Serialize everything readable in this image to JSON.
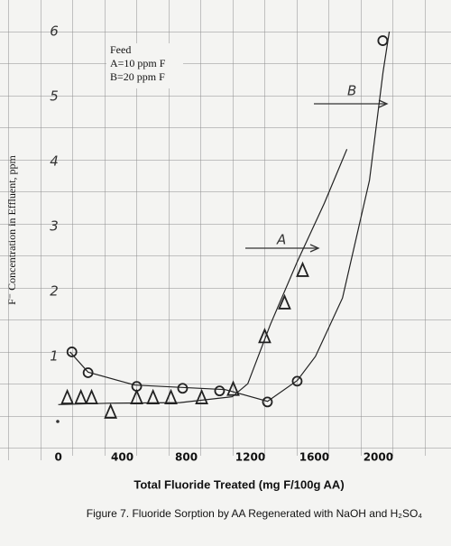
{
  "chart_data": {
    "type": "line",
    "y_label": "F⁻ Concentration in Effluent, ppm",
    "x_label": "Total Fluoride Treated (mg F/100g AA)",
    "caption": "Figure 7. Fluoride Sorption by AA Regenerated with NaOH and H₂SO₄",
    "legend_title": "Feed",
    "legend_entries": [
      "A=10 ppm F",
      "B=20 ppm F"
    ],
    "xlim": [
      -60,
      2150
    ],
    "ylim": [
      0,
      6.3
    ],
    "xticks": [
      0,
      400,
      800,
      1200,
      1600,
      2000
    ],
    "yticks": [
      1,
      2,
      3,
      4,
      5,
      6
    ],
    "series": [
      {
        "name": "A",
        "marker": "triangle",
        "color": "#222",
        "x": [
          56,
          141,
          208,
          327,
          490,
          592,
          704,
          896,
          1093,
          1290,
          1414,
          1527
        ],
        "values": [
          0.36,
          0.36,
          0.36,
          0.14,
          0.36,
          0.36,
          0.36,
          0.36,
          0.49,
          1.3,
          1.82,
          2.32
        ],
        "fit_x": [
          0,
          310,
          761,
          1088,
          1184,
          1325,
          1494,
          1663,
          1804
        ],
        "fit_y": [
          0.26,
          0.28,
          0.29,
          0.38,
          0.58,
          1.49,
          2.46,
          3.36,
          4.19
        ]
      },
      {
        "name": "B",
        "marker": "circle",
        "color": "#222",
        "x": [
          85,
          186,
          490,
          777,
          1008,
          1307,
          1493,
          2028
        ],
        "values": [
          1.07,
          0.75,
          0.54,
          0.51,
          0.47,
          0.3,
          0.62,
          5.86
        ],
        "fit_x": [
          73,
          186,
          479,
          1043,
          1308,
          1494,
          1607,
          1776,
          1945,
          2030,
          2069
        ],
        "fit_y": [
          1.07,
          0.76,
          0.56,
          0.49,
          0.31,
          0.63,
          1.0,
          1.9,
          3.71,
          5.38,
          6.0
        ]
      }
    ]
  }
}
